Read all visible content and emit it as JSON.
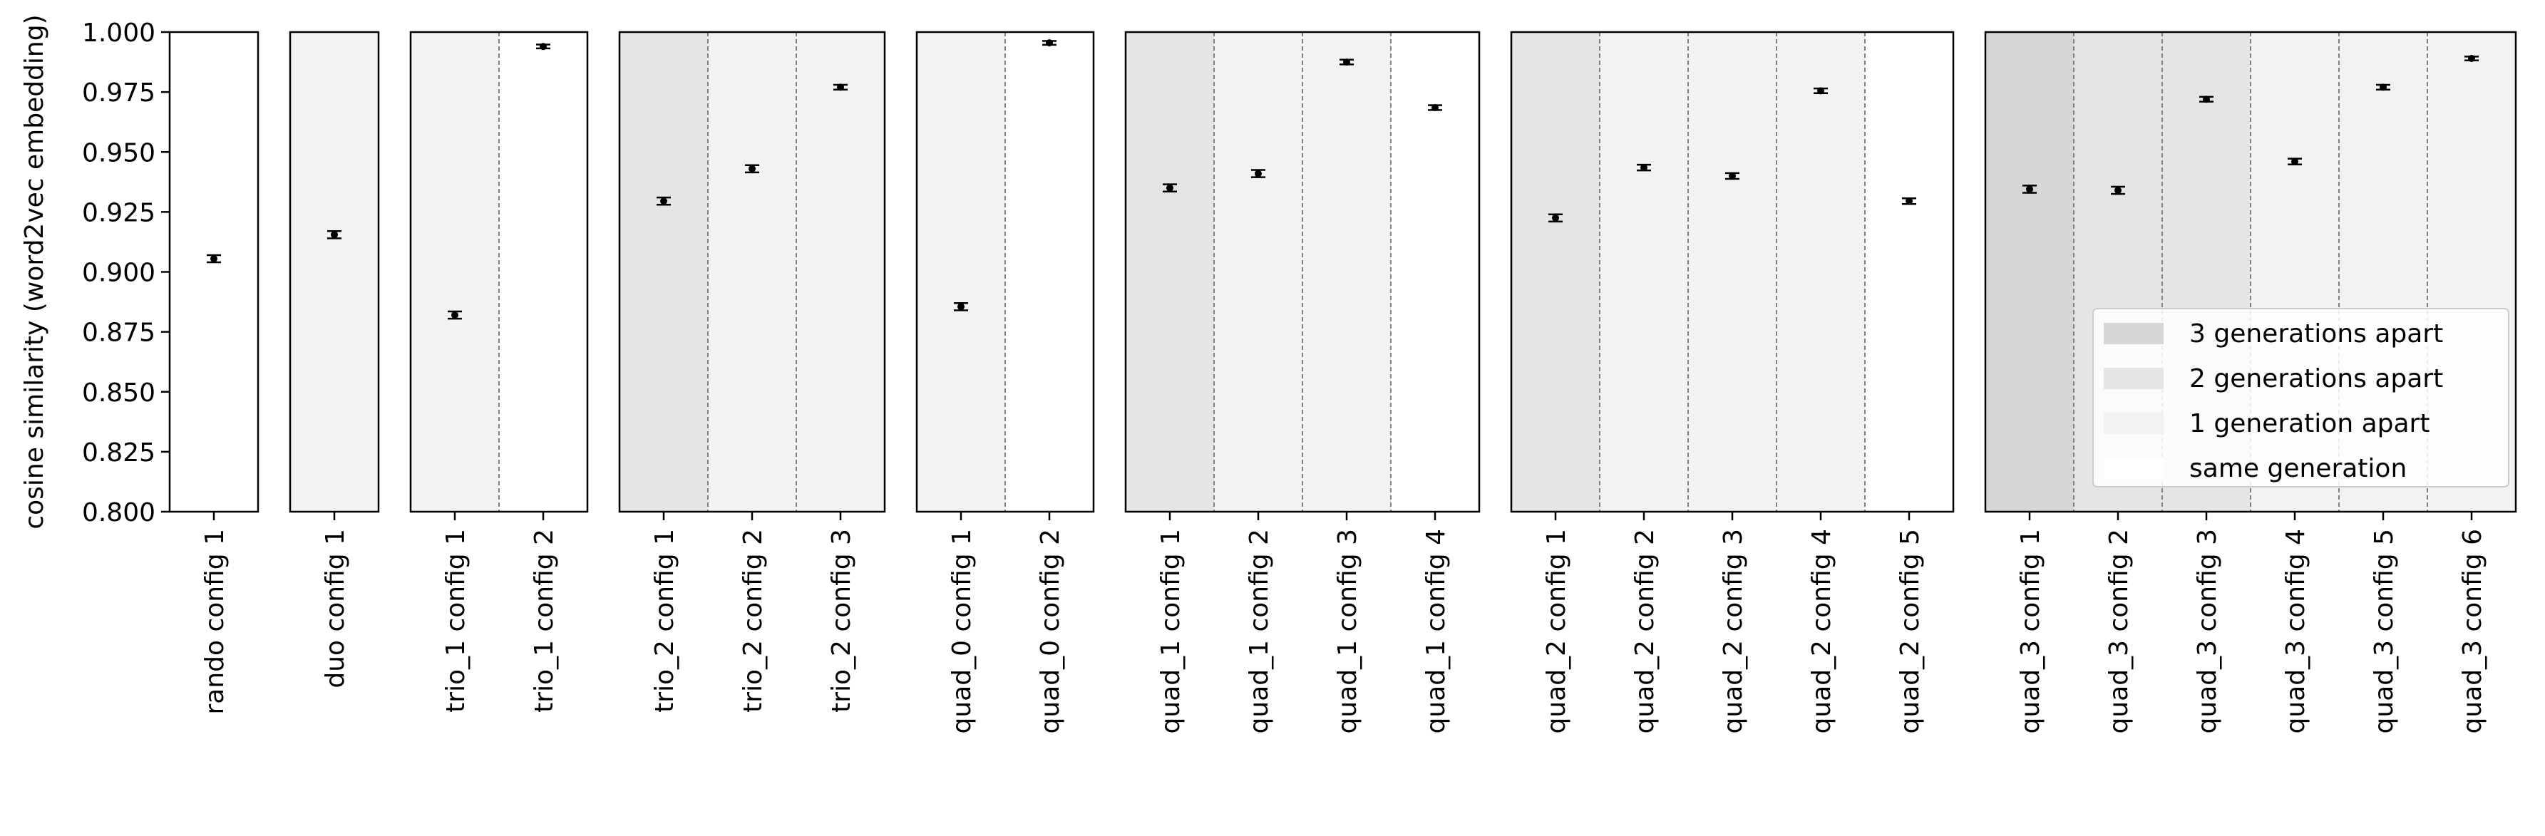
{
  "chart_data": {
    "type": "scatter",
    "ylabel": "cosine similarity (word2vec embedding)",
    "ylim": [
      0.8,
      1.0
    ],
    "yticks": [
      0.8,
      0.825,
      0.85,
      0.875,
      0.9,
      0.925,
      0.95,
      0.975,
      1.0
    ],
    "ytick_labels": [
      "0.800",
      "0.825",
      "0.850",
      "0.875",
      "0.900",
      "0.925",
      "0.950",
      "0.975",
      "1.000"
    ],
    "error_bars": true,
    "shading_colors": {
      "3 generations apart": "#d6d6d6",
      "2 generations apart": "#e5e5e5",
      "1 generation apart": "#f2f2f2",
      "same generation": "#ffffff"
    },
    "legend": {
      "placement": "lower-right of last panel",
      "entries": [
        {
          "label": "3 generations apart",
          "key": "3 generations apart"
        },
        {
          "label": "2 generations apart",
          "key": "2 generations apart"
        },
        {
          "label": "1 generation apart",
          "key": "1 generation apart"
        },
        {
          "label": "same generation",
          "key": "same generation"
        }
      ]
    },
    "panels": [
      {
        "group": "rando",
        "categories": [
          {
            "label": "rando config 1",
            "value": 0.9055,
            "err": 0.0015,
            "shade": "same generation"
          }
        ]
      },
      {
        "group": "duo",
        "categories": [
          {
            "label": "duo config 1",
            "value": 0.9155,
            "err": 0.0015,
            "shade": "1 generation apart"
          }
        ]
      },
      {
        "group": "trio_1",
        "categories": [
          {
            "label": "trio_1 config 1",
            "value": 0.882,
            "err": 0.0015,
            "shade": "1 generation apart"
          },
          {
            "label": "trio_1 config 2",
            "value": 0.994,
            "err": 0.0008,
            "shade": "same generation"
          }
        ]
      },
      {
        "group": "trio_2",
        "categories": [
          {
            "label": "trio_2 config 1",
            "value": 0.9295,
            "err": 0.0015,
            "shade": "2 generations apart"
          },
          {
            "label": "trio_2 config 2",
            "value": 0.943,
            "err": 0.0015,
            "shade": "1 generation apart"
          },
          {
            "label": "trio_2 config 3",
            "value": 0.977,
            "err": 0.001,
            "shade": "1 generation apart"
          }
        ]
      },
      {
        "group": "quad_0",
        "categories": [
          {
            "label": "quad_0 config 1",
            "value": 0.8855,
            "err": 0.0015,
            "shade": "1 generation apart"
          },
          {
            "label": "quad_0 config 2",
            "value": 0.9955,
            "err": 0.0008,
            "shade": "same generation"
          }
        ]
      },
      {
        "group": "quad_1",
        "categories": [
          {
            "label": "quad_1 config 1",
            "value": 0.935,
            "err": 0.0015,
            "shade": "2 generations apart"
          },
          {
            "label": "quad_1 config 2",
            "value": 0.941,
            "err": 0.0015,
            "shade": "1 generation apart"
          },
          {
            "label": "quad_1 config 3",
            "value": 0.9875,
            "err": 0.001,
            "shade": "1 generation apart"
          },
          {
            "label": "quad_1 config 4",
            "value": 0.9685,
            "err": 0.001,
            "shade": "same generation"
          }
        ]
      },
      {
        "group": "quad_2",
        "categories": [
          {
            "label": "quad_2 config 1",
            "value": 0.9225,
            "err": 0.0015,
            "shade": "2 generations apart"
          },
          {
            "label": "quad_2 config 2",
            "value": 0.9435,
            "err": 0.0012,
            "shade": "1 generation apart"
          },
          {
            "label": "quad_2 config 3",
            "value": 0.94,
            "err": 0.0012,
            "shade": "1 generation apart"
          },
          {
            "label": "quad_2 config 4",
            "value": 0.9755,
            "err": 0.001,
            "shade": "1 generation apart"
          },
          {
            "label": "quad_2 config 5",
            "value": 0.9295,
            "err": 0.0012,
            "shade": "same generation"
          }
        ]
      },
      {
        "group": "quad_3",
        "categories": [
          {
            "label": "quad_3 config 1",
            "value": 0.9345,
            "err": 0.0015,
            "shade": "3 generations apart"
          },
          {
            "label": "quad_3 config 2",
            "value": 0.934,
            "err": 0.0015,
            "shade": "2 generations apart"
          },
          {
            "label": "quad_3 config 3",
            "value": 0.972,
            "err": 0.001,
            "shade": "2 generations apart"
          },
          {
            "label": "quad_3 config 4",
            "value": 0.946,
            "err": 0.0012,
            "shade": "1 generation apart"
          },
          {
            "label": "quad_3 config 5",
            "value": 0.977,
            "err": 0.001,
            "shade": "1 generation apart"
          },
          {
            "label": "quad_3 config 6",
            "value": 0.989,
            "err": 0.0008,
            "shade": "1 generation apart"
          }
        ]
      }
    ]
  }
}
